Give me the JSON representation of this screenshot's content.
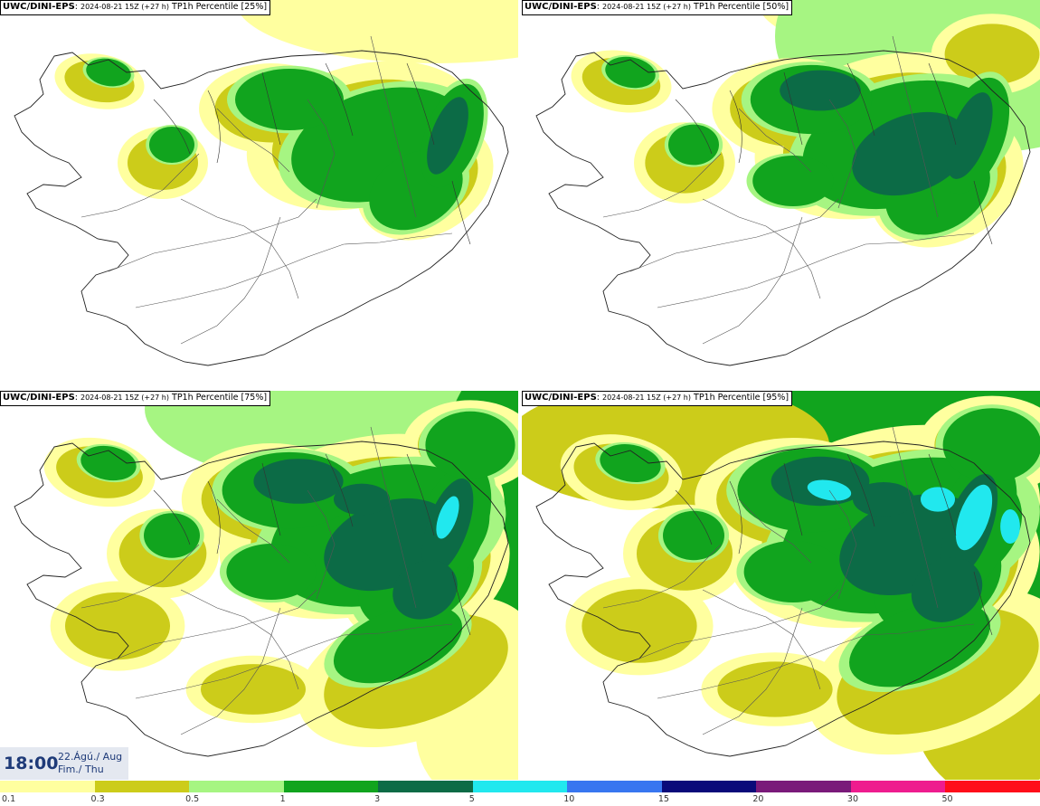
{
  "panels": [
    {
      "model": "UWC/DINI-EPS",
      "run": "2024-08-21 15Z (+27 h)",
      "field": "TP1h Percentile [25%]",
      "level": 0
    },
    {
      "model": "UWC/DINI-EPS",
      "run": "2024-08-21 15Z (+27 h)",
      "field": "TP1h Percentile [50%]",
      "level": 1
    },
    {
      "model": "UWC/DINI-EPS",
      "run": "2024-08-21 15Z (+27 h)",
      "field": "TP1h Percentile [75%]",
      "level": 2
    },
    {
      "model": "UWC/DINI-EPS",
      "run": "2024-08-21 15Z (+27 h)",
      "field": "TP1h Percentile [95%]",
      "level": 3
    }
  ],
  "valid_time": {
    "time": "18:00",
    "date_line1": "22.Ágú./ Aug",
    "date_line2": "Fim./ Thu"
  },
  "legend": {
    "ticks": [
      "0.1",
      "0.3",
      "0.5",
      "1",
      "3",
      "5",
      "10",
      "15",
      "20",
      "30",
      "50"
    ],
    "colors": [
      "#ffff9f",
      "#cccc1a",
      "#a6f582",
      "#11a41e",
      "#0c6b46",
      "#21e8ee",
      "#3876f0",
      "#0a0a7a",
      "#7a1a7a",
      "#ee1c8e",
      "#ff0d1a"
    ]
  },
  "palette": {
    "coast": "#222222",
    "background": "#ffffff"
  }
}
